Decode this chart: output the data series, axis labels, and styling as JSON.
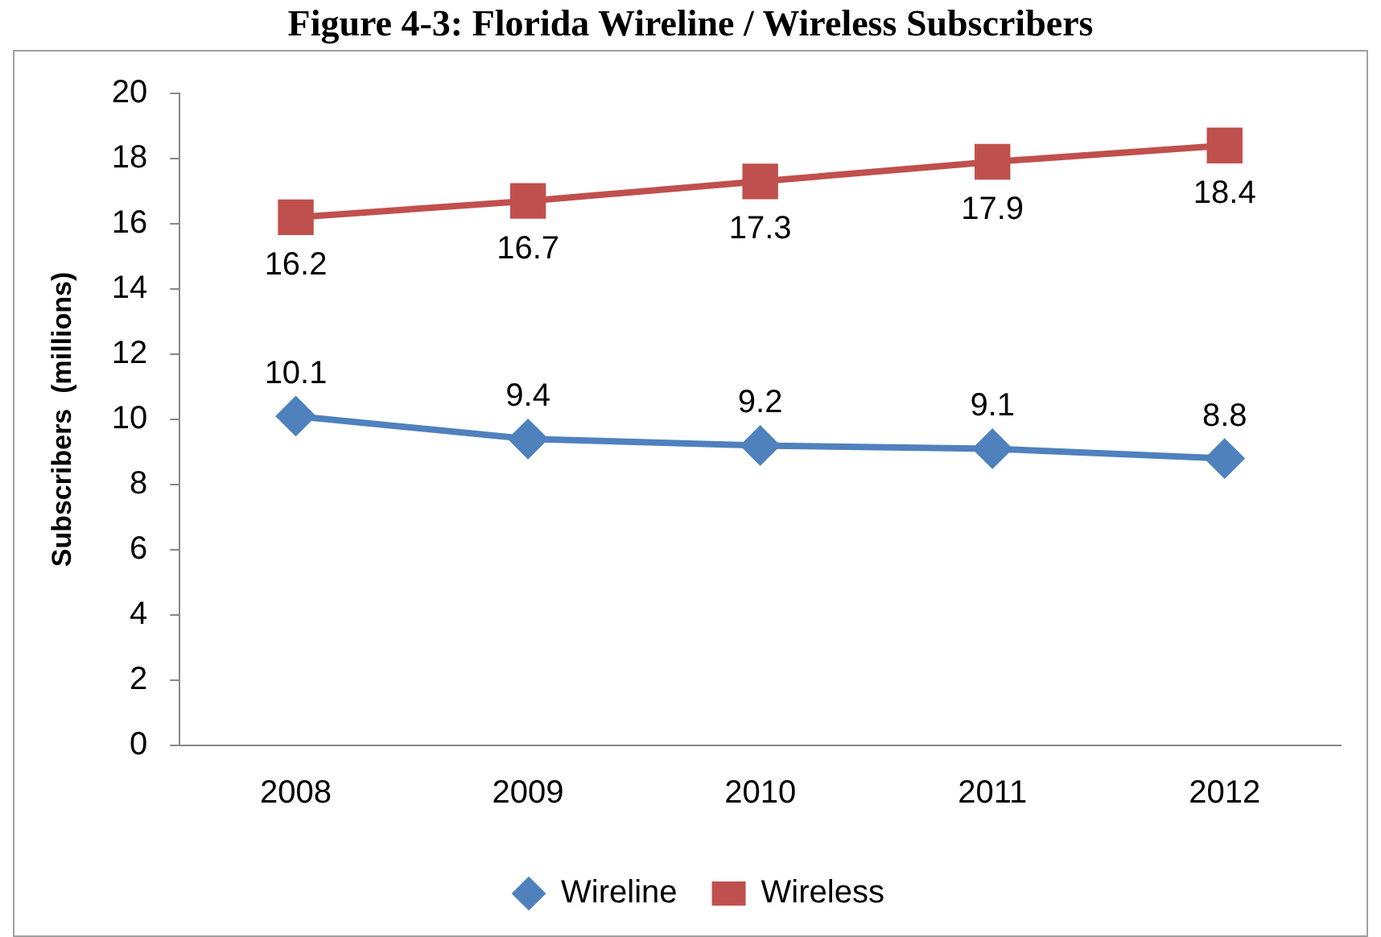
{
  "chart_data": {
    "type": "line",
    "title": "Figure 4-3: Florida Wireline / Wireless Subscribers",
    "ylabel": "Subscribers  (millions)",
    "categories": [
      "2008",
      "2009",
      "2010",
      "2011",
      "2012"
    ],
    "series": [
      {
        "name": "Wireline",
        "color": "#4f81bd",
        "marker": "diamond",
        "values": [
          10.1,
          9.4,
          9.2,
          9.1,
          8.8
        ]
      },
      {
        "name": "Wireless",
        "color": "#c0504d",
        "marker": "square",
        "values": [
          16.2,
          16.7,
          17.3,
          17.9,
          18.4
        ]
      }
    ],
    "ylim": [
      0,
      20
    ],
    "yticks": [
      0,
      2,
      4,
      6,
      8,
      10,
      12,
      14,
      16,
      18,
      20
    ],
    "grid": false,
    "legend": "bottom",
    "data_labels": true,
    "line_style": "solid"
  }
}
